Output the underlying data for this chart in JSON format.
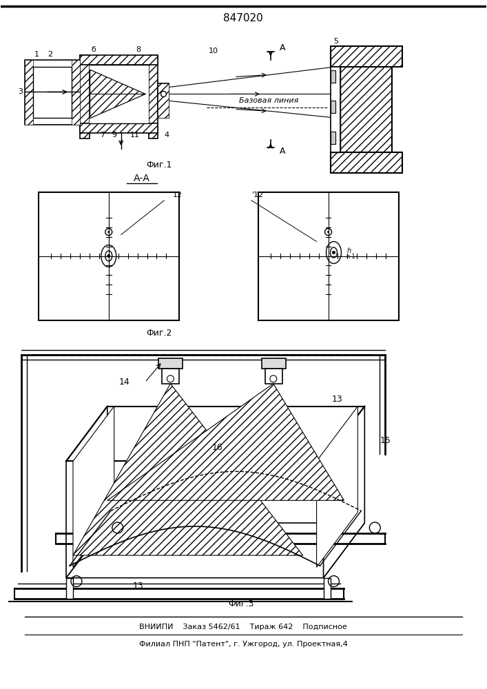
{
  "title": "847020",
  "fig_width": 7.07,
  "fig_height": 10.0,
  "bg_color": "#ffffff",
  "footer_line1": "ВНИИПИ    Заказ 5462/61    Тираж 642    Подписное",
  "footer_line2": "Филиал ПНП \"Патент\", г. Ужгород, ул. Проектная,4",
  "fig1_label": "Фиг.1",
  "fig2_label": "Фиг.2",
  "fig3_label": "Фиг.3",
  "aa_label": "А-А",
  "bazovaya": "Базовая линия"
}
